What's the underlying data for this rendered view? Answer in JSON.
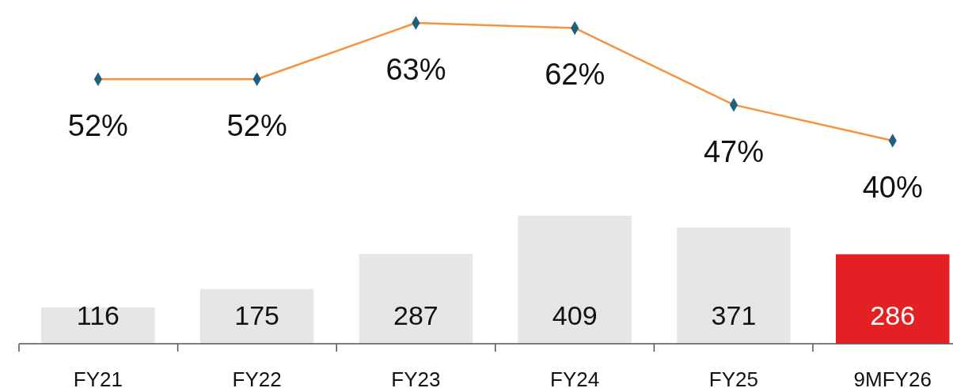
{
  "chart_data": [
    {
      "type": "line",
      "categories": [
        null,
        null,
        null,
        null,
        null,
        null
      ],
      "series": [
        {
          "color": "#f5923e",
          "values": [
            52,
            52,
            63,
            62,
            47,
            40
          ],
          "value_labels": [
            "52%",
            "52%",
            "63%",
            "62%",
            "47%",
            "40%"
          ]
        }
      ],
      "marker": "diamond",
      "tick_labels": false
    },
    {
      "type": "bar",
      "categories": [
        "FY21",
        "FY22",
        "FY23",
        "FY24",
        "FY25",
        "9MFY26"
      ],
      "series": [
        {
          "colors": [
            "#e6e6e6",
            "#e6e6e6",
            "#e6e6e6",
            "#e6e6e6",
            "#e6e6e6",
            "#e32124"
          ],
          "values": [
            116,
            175,
            287,
            409,
            371,
            286
          ]
        }
      ],
      "data_labels": true,
      "tick_labels": "x"
    }
  ]
}
